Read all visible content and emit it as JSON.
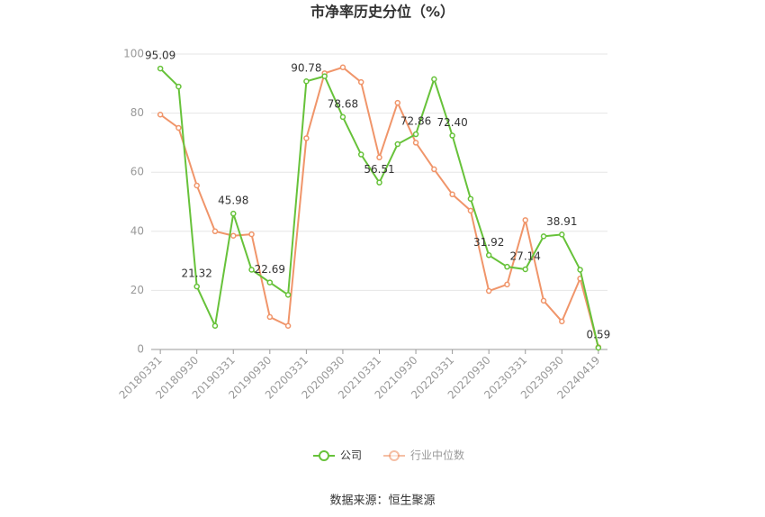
{
  "chart_data": {
    "type": "line",
    "title": "市净率历史分位（%）",
    "source": "数据来源：恒生聚源",
    "categories": [
      "20180331",
      null,
      "20180930",
      null,
      "20190331",
      null,
      "20190930",
      null,
      "20200331",
      null,
      "20200930",
      null,
      "20210331",
      null,
      "20210930",
      null,
      "20220331",
      null,
      "20220930",
      null,
      "20230331",
      null,
      "20230930",
      null,
      "20240419"
    ],
    "series": [
      {
        "name": "公司",
        "color": "#67c23a",
        "values": [
          95.09,
          89,
          21.32,
          8,
          45.98,
          27,
          22.69,
          18.5,
          90.78,
          92.5,
          78.68,
          66,
          56.51,
          69.5,
          72.86,
          91.5,
          72.4,
          51,
          31.92,
          28,
          27.14,
          38.3,
          38.91,
          27,
          0.59
        ],
        "value_labels": [
          "95.09",
          null,
          "21.32",
          null,
          "45.98",
          null,
          "22.69",
          null,
          "90.78",
          null,
          "78.68",
          null,
          "56.51",
          null,
          "72.86",
          null,
          "72.40",
          null,
          "31.92",
          null,
          "27.14",
          null,
          "38.91",
          null,
          "0.59"
        ]
      },
      {
        "name": "行业中位数",
        "color": "#f0956a",
        "values": [
          79.5,
          75,
          55.5,
          40,
          38.5,
          39,
          11,
          8,
          71.5,
          93.5,
          95.5,
          90.5,
          65,
          83.5,
          70,
          61,
          52.5,
          47,
          19.8,
          22,
          43.8,
          16.5,
          9.5,
          24,
          0.8
        ]
      }
    ],
    "ylim": [
      0,
      100
    ],
    "yticks": [
      0,
      20,
      40,
      60,
      80,
      100
    ],
    "grid": true,
    "legend": "bottom"
  }
}
